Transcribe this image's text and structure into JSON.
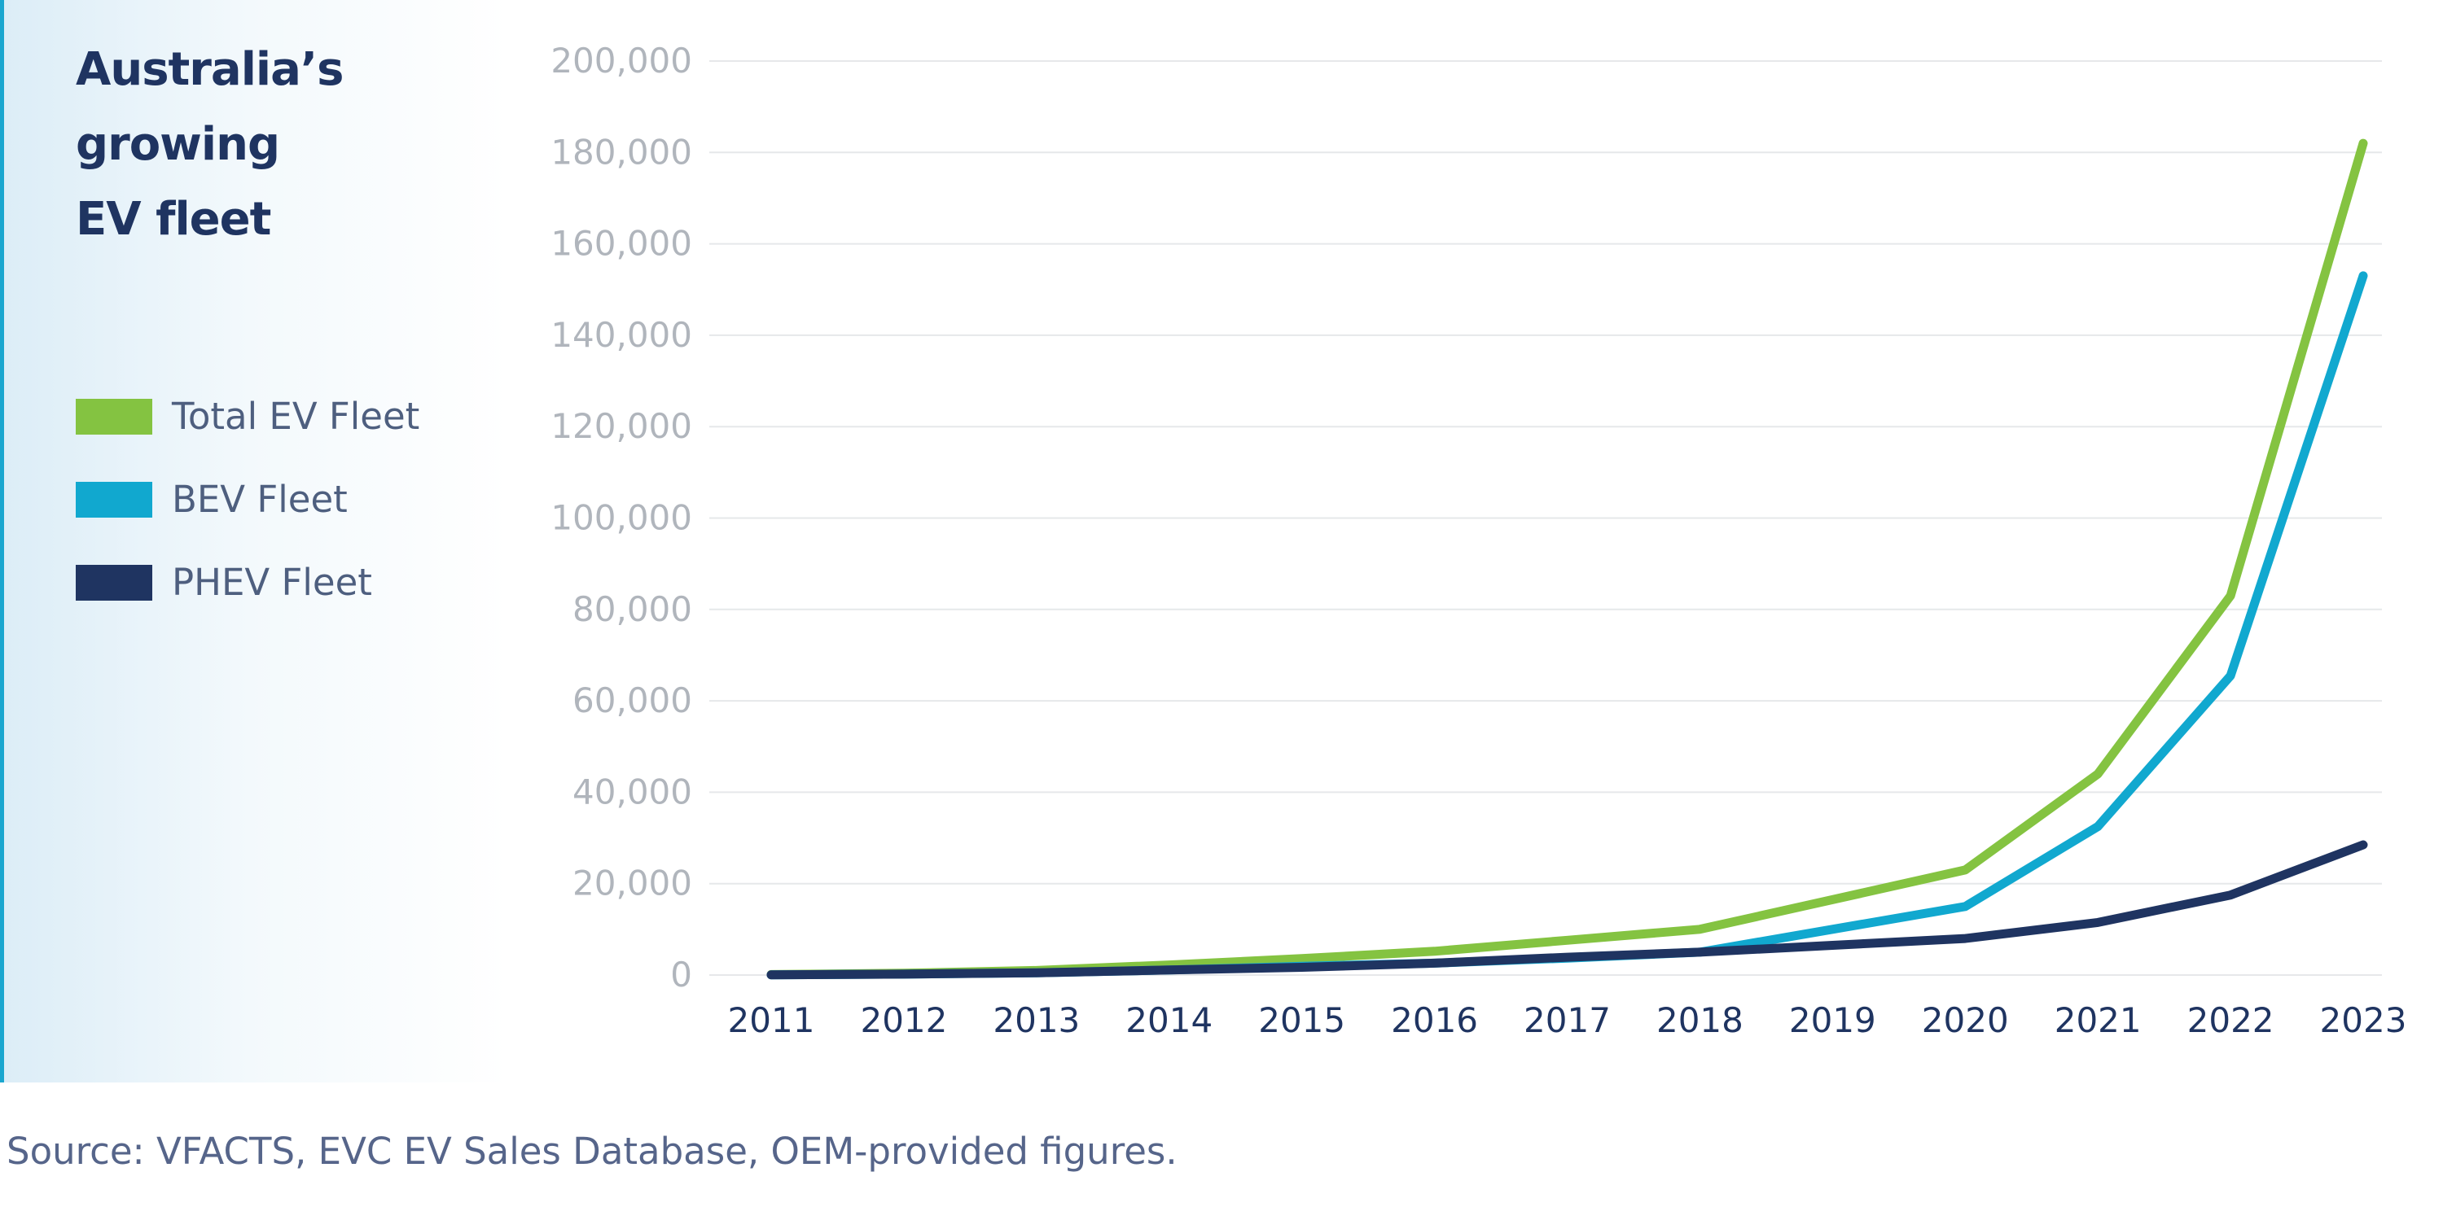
{
  "chart_data": {
    "type": "line",
    "title": [
      "Australia’s",
      "growing",
      "EV fleet"
    ],
    "x": [
      "2011",
      "2012",
      "2013",
      "2014",
      "2015",
      "2016",
      "2017",
      "2018",
      "2019",
      "2020",
      "2021",
      "2022",
      "2023"
    ],
    "ylim": [
      0,
      200000
    ],
    "yticks": [
      0,
      20000,
      40000,
      60000,
      80000,
      100000,
      120000,
      140000,
      160000,
      180000,
      200000
    ],
    "ytick_labels": [
      "0",
      "20,000",
      "40,000",
      "60,000",
      "80,000",
      "100,000",
      "120,000",
      "140,000",
      "160,000",
      "180,000",
      "200,000"
    ],
    "grid": true,
    "legend_position": "left",
    "series": [
      {
        "name": "Total EV Fleet",
        "color": "#84c341",
        "values": [
          100,
          400,
          1000,
          2200,
          3600,
          5200,
          7600,
          10000,
          16500,
          23000,
          44000,
          83000,
          182000
        ]
      },
      {
        "name": "BEV Fleet",
        "color": "#11a8cf",
        "values": [
          50,
          200,
          500,
          1100,
          1900,
          2600,
          3700,
          5000,
          10000,
          15000,
          32500,
          65500,
          153000
        ]
      },
      {
        "name": "PHEV Fleet",
        "color": "#1f3461",
        "values": [
          50,
          200,
          500,
          1100,
          1700,
          2600,
          3900,
          5000,
          6500,
          8000,
          11500,
          17500,
          28500
        ]
      }
    ]
  },
  "source": "Source: VFACTS, EVC EV Sales Database, OEM-provided figures."
}
